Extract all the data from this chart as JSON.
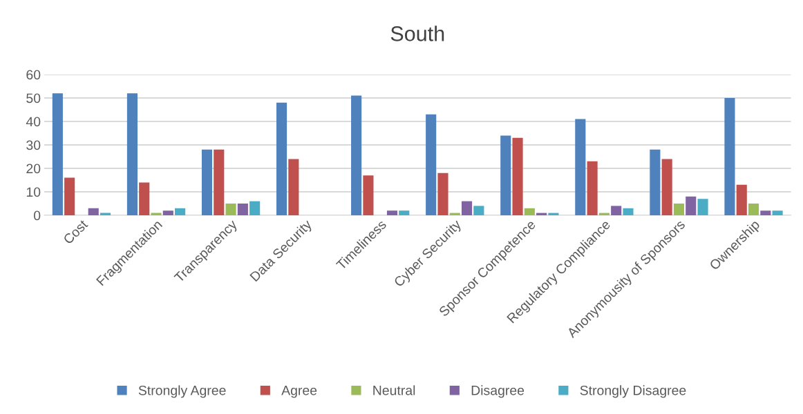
{
  "chart_data": {
    "type": "bar",
    "title": "South",
    "categories": [
      "Cost",
      "Fragmentation",
      "Transparency",
      "Data Security",
      "Timeliness",
      "Cyber Security",
      "Sponsor Competence",
      "Regulatory Compliance",
      "Anonymousity of Sponsors",
      "Ownership"
    ],
    "series": [
      {
        "name": "Strongly Agree",
        "color": "#4f81bd",
        "values": [
          52,
          52,
          28,
          48,
          51,
          43,
          34,
          41,
          28,
          50
        ]
      },
      {
        "name": "Agree",
        "color": "#c0504d",
        "values": [
          16,
          14,
          28,
          24,
          17,
          18,
          33,
          23,
          24,
          13
        ]
      },
      {
        "name": "Neutral",
        "color": "#9bbb59",
        "values": [
          null,
          1,
          5,
          null,
          null,
          1,
          3,
          1,
          5,
          5
        ]
      },
      {
        "name": "Disagree",
        "color": "#8064a2",
        "values": [
          3,
          2,
          5,
          null,
          2,
          6,
          1,
          4,
          8,
          2
        ]
      },
      {
        "name": "Strongly Disagree",
        "color": "#4bacc6",
        "values": [
          1,
          3,
          6,
          null,
          2,
          4,
          1,
          3,
          7,
          2
        ]
      }
    ],
    "ylim": [
      0,
      60
    ],
    "yticks": [
      0,
      10,
      20,
      30,
      40,
      50,
      60
    ],
    "grid": "y",
    "legend": "bottom"
  }
}
